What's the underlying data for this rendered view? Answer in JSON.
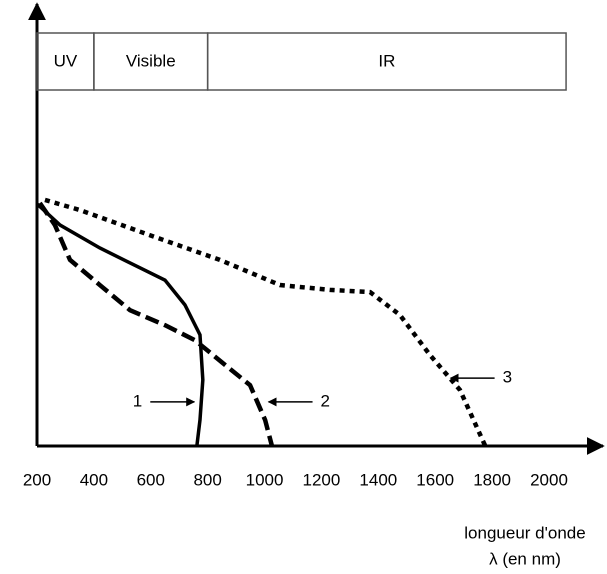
{
  "chart_data": {
    "type": "line",
    "xlabel": [
      "longueur d'onde",
      "λ (en nm)"
    ],
    "xlim": [
      200,
      2000
    ],
    "xticks": [
      200,
      400,
      600,
      800,
      1000,
      1200,
      1400,
      1600,
      1800,
      2000
    ],
    "ylim": [
      0,
      100
    ],
    "bands": [
      {
        "label": "UV",
        "start": 200,
        "end": 400
      },
      {
        "label": "Visible",
        "start": 400,
        "end": 800
      },
      {
        "label": "IR",
        "start": 800,
        "end": 2060
      }
    ],
    "series": [
      {
        "name": "1",
        "color": "#000000",
        "style": "solid",
        "x": [
          200,
          281,
          421,
          562,
          650,
          720,
          773,
          783,
          773,
          762
        ],
        "values": [
          54.9,
          50.1,
          44.9,
          40.4,
          37.6,
          32,
          25.2,
          15,
          5.9,
          0
        ]
      },
      {
        "name": "2",
        "color": "#000000",
        "style": "dashed",
        "x": [
          210,
          263,
          316,
          421,
          527,
          650,
          755,
          861,
          949,
          1002,
          1026
        ],
        "values": [
          55.1,
          50.1,
          42.2,
          36.5,
          30.8,
          27.4,
          24,
          18.4,
          13.8,
          5.9,
          0
        ]
      },
      {
        "name": "3",
        "color": "#000000",
        "style": "dotted",
        "x": [
          228,
          351,
          597,
          843,
          1054,
          1230,
          1371,
          1476,
          1582,
          1687,
          1776
        ],
        "values": [
          55.8,
          53.5,
          47.8,
          42.2,
          36.5,
          35.4,
          34.9,
          29.7,
          20.6,
          12.7,
          0
        ]
      }
    ],
    "annotations": [
      {
        "text": "1",
        "x": 767,
        "y": 10,
        "from": "left"
      },
      {
        "text": "2",
        "x": 1000,
        "y": 10,
        "from": "right"
      },
      {
        "text": "3",
        "x": 1640,
        "y": 15.4,
        "from": "right"
      }
    ]
  }
}
